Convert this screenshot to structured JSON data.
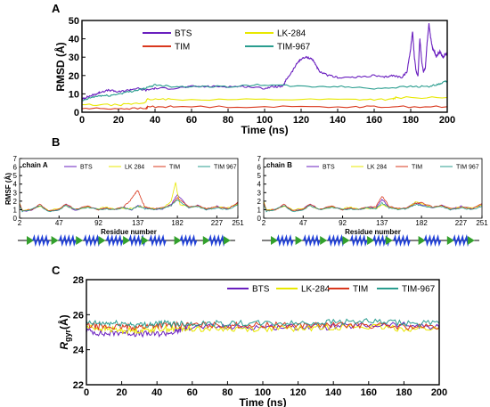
{
  "figure": {
    "label_a": "A",
    "label_b": "B",
    "label_c": "C"
  },
  "chart_data": [
    {
      "id": "A",
      "type": "line",
      "xlabel": "Time (ns)",
      "ylabel": "RMSD (Å)",
      "xlim": [
        0,
        200
      ],
      "ylim": [
        0,
        50
      ],
      "xticks": [
        0,
        20,
        40,
        60,
        80,
        100,
        120,
        140,
        160,
        180,
        200
      ],
      "yticks": [
        0,
        10,
        20,
        30,
        40,
        50
      ],
      "legend_position": "top-center",
      "series": [
        {
          "name": "BTS",
          "color": "#6a1fbf",
          "x": [
            0,
            2,
            5,
            8,
            10,
            15,
            20,
            25,
            30,
            35,
            40,
            50,
            60,
            70,
            80,
            90,
            100,
            105,
            110,
            112,
            115,
            118,
            120,
            123,
            126,
            128,
            130,
            135,
            140,
            150,
            160,
            165,
            170,
            175,
            178,
            180,
            181,
            182,
            183,
            184,
            185,
            186,
            187,
            188,
            189,
            190,
            191,
            192,
            193,
            194,
            195,
            196,
            197,
            198,
            199,
            200
          ],
          "y": [
            7,
            8,
            9,
            10,
            11,
            12,
            11,
            12,
            13,
            12,
            13,
            13,
            14,
            14,
            14,
            14,
            13,
            14,
            14,
            18,
            22,
            27,
            29,
            30,
            29,
            26,
            22,
            20,
            19,
            19,
            20,
            19,
            20,
            19,
            22,
            35,
            44,
            30,
            22,
            20,
            40,
            28,
            22,
            24,
            38,
            48,
            40,
            35,
            33,
            30,
            32,
            33,
            31,
            30,
            32,
            32
          ]
        },
        {
          "name": "TIM",
          "color": "#d9381e",
          "x": [
            0,
            20,
            35,
            36,
            50,
            100,
            150,
            170,
            200
          ],
          "y": [
            2,
            2,
            2,
            3,
            3,
            3,
            3,
            3,
            3
          ]
        },
        {
          "name": "LK-284",
          "color": "#e8e800",
          "x": [
            0,
            20,
            34,
            36,
            50,
            100,
            150,
            170,
            172,
            200
          ],
          "y": [
            4,
            4,
            5,
            7,
            7,
            7,
            7,
            7,
            8,
            8
          ]
        },
        {
          "name": "TIM-967",
          "color": "#2a9d8f",
          "x": [
            0,
            5,
            10,
            15,
            20,
            25,
            30,
            35,
            40,
            50,
            60,
            80,
            100,
            120,
            140,
            160,
            180,
            190,
            195,
            200
          ],
          "y": [
            6,
            8,
            9,
            9,
            10,
            11,
            12,
            13,
            15,
            14,
            14,
            14,
            15,
            14,
            14,
            13,
            14,
            14,
            15,
            17
          ]
        }
      ]
    },
    {
      "id": "B-chainA",
      "type": "line",
      "title": "chain A",
      "xlabel": "Residue number",
      "ylabel": "RMSF (Å)",
      "xlim": [
        2,
        251
      ],
      "ylim": [
        0,
        7
      ],
      "xticks": [
        2,
        47,
        92,
        137,
        182,
        227,
        251
      ],
      "yticks": [
        0,
        1,
        2,
        3,
        4,
        5,
        6,
        7
      ],
      "legend_position": "top",
      "series": [
        {
          "name": "BTS",
          "color": "#6a1fbf",
          "x": [
            2,
            5,
            15,
            25,
            35,
            47,
            55,
            65,
            80,
            92,
            100,
            110,
            120,
            130,
            137,
            145,
            155,
            165,
            175,
            182,
            195,
            205,
            215,
            227,
            240,
            251
          ],
          "y": [
            1.6,
            0.8,
            0.9,
            1.5,
            0.8,
            1.0,
            1.6,
            0.9,
            1.4,
            1.0,
            1.2,
            1.0,
            1.3,
            1.0,
            1.5,
            1.2,
            1.0,
            1.1,
            1.6,
            2.8,
            1.2,
            1.5,
            1.0,
            1.4,
            1.1,
            1.8
          ]
        },
        {
          "name": "LK 284",
          "color": "#e8e800",
          "x": [
            2,
            5,
            15,
            25,
            35,
            47,
            55,
            65,
            80,
            92,
            100,
            110,
            120,
            130,
            137,
            145,
            155,
            165,
            175,
            180,
            182,
            185,
            195,
            205,
            215,
            227,
            240,
            251
          ],
          "y": [
            1.8,
            0.9,
            1.0,
            1.4,
            0.9,
            1.1,
            1.5,
            1.0,
            1.3,
            1.1,
            1.3,
            1.1,
            1.2,
            1.1,
            1.4,
            1.3,
            1.1,
            1.2,
            2.0,
            4.2,
            3.0,
            1.6,
            1.3,
            1.4,
            1.1,
            1.3,
            1.2,
            1.7
          ]
        },
        {
          "name": "TIM",
          "color": "#d9381e",
          "x": [
            2,
            5,
            15,
            25,
            35,
            47,
            55,
            65,
            80,
            92,
            100,
            110,
            120,
            128,
            133,
            137,
            140,
            145,
            155,
            165,
            175,
            182,
            195,
            205,
            215,
            227,
            240,
            251
          ],
          "y": [
            1.7,
            0.9,
            1.0,
            1.6,
            0.9,
            1.0,
            1.7,
            1.0,
            1.4,
            1.0,
            1.2,
            1.0,
            1.3,
            2.0,
            2.8,
            3.3,
            2.4,
            1.3,
            1.1,
            1.2,
            1.5,
            2.4,
            1.3,
            1.5,
            1.1,
            1.3,
            1.1,
            1.9
          ]
        },
        {
          "name": "TIM 967",
          "color": "#2a9d8f",
          "x": [
            2,
            5,
            15,
            25,
            35,
            47,
            55,
            65,
            80,
            92,
            100,
            110,
            120,
            130,
            137,
            145,
            155,
            165,
            175,
            182,
            195,
            205,
            215,
            227,
            240,
            251
          ],
          "y": [
            1.5,
            0.8,
            1.0,
            1.5,
            0.8,
            1.0,
            1.5,
            1.0,
            1.3,
            1.0,
            1.1,
            1.0,
            1.2,
            1.0,
            1.4,
            1.1,
            1.0,
            1.1,
            1.5,
            2.2,
            1.2,
            1.4,
            1.0,
            1.2,
            1.0,
            1.6
          ]
        }
      ]
    },
    {
      "id": "B-chainB",
      "type": "line",
      "title": "chain B",
      "xlabel": "Residue number",
      "xlim": [
        2,
        251
      ],
      "ylim": [
        0,
        7
      ],
      "xticks": [
        2,
        47,
        92,
        137,
        182,
        227,
        251
      ],
      "yticks": [
        0,
        1,
        2,
        3,
        4,
        5,
        6,
        7
      ],
      "legend_position": "top",
      "series": [
        {
          "name": "BTS",
          "color": "#6a1fbf",
          "x": [
            2,
            5,
            15,
            25,
            35,
            47,
            55,
            65,
            80,
            92,
            100,
            110,
            120,
            130,
            137,
            145,
            155,
            165,
            175,
            182,
            195,
            205,
            215,
            227,
            240,
            251
          ],
          "y": [
            1.9,
            0.9,
            1.0,
            1.5,
            0.9,
            1.1,
            1.6,
            1.0,
            1.4,
            1.0,
            1.2,
            1.0,
            1.3,
            1.2,
            2.2,
            1.3,
            1.1,
            1.2,
            1.8,
            1.6,
            1.2,
            1.5,
            1.0,
            1.4,
            1.1,
            1.6
          ]
        },
        {
          "name": "LK 284",
          "color": "#e8e800",
          "x": [
            2,
            5,
            15,
            25,
            35,
            47,
            55,
            65,
            80,
            92,
            100,
            110,
            120,
            130,
            137,
            145,
            155,
            165,
            175,
            182,
            195,
            205,
            215,
            227,
            240,
            251
          ],
          "y": [
            2.0,
            1.0,
            1.0,
            1.4,
            1.0,
            1.1,
            1.5,
            1.0,
            1.3,
            1.1,
            1.3,
            1.1,
            1.2,
            1.1,
            1.6,
            1.3,
            1.1,
            1.2,
            1.9,
            1.7,
            1.3,
            1.4,
            1.1,
            1.3,
            1.2,
            1.5
          ]
        },
        {
          "name": "TIM",
          "color": "#d9381e",
          "x": [
            2,
            5,
            15,
            25,
            35,
            47,
            55,
            65,
            80,
            92,
            100,
            110,
            120,
            130,
            137,
            145,
            155,
            165,
            175,
            182,
            195,
            205,
            215,
            227,
            240,
            251
          ],
          "y": [
            1.8,
            0.9,
            1.0,
            1.6,
            0.9,
            1.0,
            1.7,
            1.0,
            1.4,
            1.0,
            1.2,
            1.0,
            1.3,
            1.3,
            2.6,
            1.4,
            1.1,
            1.2,
            1.7,
            1.8,
            1.3,
            1.5,
            1.1,
            1.3,
            1.1,
            1.7
          ]
        },
        {
          "name": "TIM 967",
          "color": "#2a9d8f",
          "x": [
            2,
            5,
            15,
            25,
            35,
            47,
            55,
            65,
            80,
            92,
            100,
            110,
            120,
            130,
            137,
            145,
            155,
            165,
            175,
            182,
            195,
            205,
            215,
            227,
            240,
            251
          ],
          "y": [
            1.6,
            0.8,
            1.0,
            1.5,
            0.8,
            1.0,
            1.5,
            1.0,
            1.3,
            1.0,
            1.1,
            1.0,
            1.2,
            1.1,
            1.8,
            1.2,
            1.0,
            1.1,
            1.6,
            1.5,
            1.2,
            1.4,
            1.0,
            1.2,
            1.0,
            1.4
          ]
        }
      ]
    },
    {
      "id": "C",
      "type": "line",
      "xlabel": "Time (ns)",
      "ylabel": "R_gyr(Å)",
      "ylabel_main": "R",
      "ylabel_sub": "gyr",
      "ylabel_tail": "(Å)",
      "xlim": [
        0,
        200
      ],
      "ylim": [
        22,
        28
      ],
      "xticks": [
        0,
        20,
        40,
        60,
        80,
        100,
        120,
        140,
        160,
        180,
        200
      ],
      "yticks": [
        22,
        24,
        26,
        28
      ],
      "legend_position": "top-right",
      "series": [
        {
          "name": "BTS",
          "color": "#6a1fbf",
          "x": [
            0,
            10,
            20,
            30,
            40,
            50,
            55,
            60,
            80,
            100,
            120,
            140,
            160,
            180,
            200
          ],
          "y": [
            25.1,
            24.9,
            25.0,
            24.9,
            24.9,
            25.0,
            25.2,
            25.3,
            25.3,
            25.3,
            25.3,
            25.3,
            25.4,
            25.4,
            25.3
          ]
        },
        {
          "name": "LK-284",
          "color": "#e8e800",
          "x": [
            0,
            10,
            20,
            30,
            40,
            50,
            60,
            80,
            100,
            120,
            140,
            160,
            180,
            200
          ],
          "y": [
            25.3,
            25.2,
            25.1,
            25.1,
            25.2,
            25.2,
            25.2,
            25.2,
            25.2,
            25.2,
            25.3,
            25.3,
            25.2,
            25.2
          ]
        },
        {
          "name": "TIM",
          "color": "#d9381e",
          "x": [
            0,
            10,
            20,
            30,
            40,
            50,
            60,
            80,
            100,
            120,
            140,
            160,
            180,
            200
          ],
          "y": [
            25.4,
            25.3,
            25.3,
            25.3,
            25.4,
            25.4,
            25.4,
            25.4,
            25.4,
            25.4,
            25.4,
            25.4,
            25.3,
            25.3
          ]
        },
        {
          "name": "TIM-967",
          "color": "#2a9d8f",
          "x": [
            0,
            10,
            20,
            30,
            40,
            50,
            60,
            80,
            100,
            120,
            140,
            160,
            180,
            200
          ],
          "y": [
            25.5,
            25.5,
            25.5,
            25.4,
            25.5,
            25.5,
            25.5,
            25.5,
            25.5,
            25.5,
            25.6,
            25.6,
            25.5,
            25.5
          ]
        }
      ]
    }
  ]
}
